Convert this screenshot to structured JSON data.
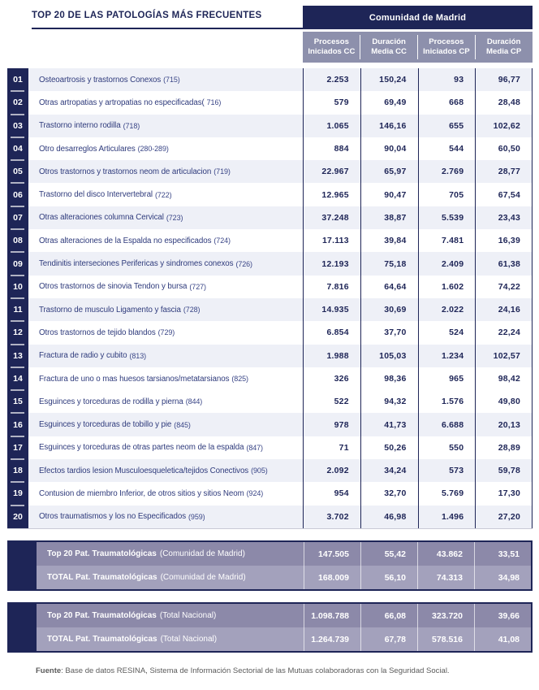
{
  "header": {
    "title": "TOP 20 DE LAS PATOLOGÍAS MÁS FRECUENTES",
    "region_title": "Comunidad de Madrid",
    "columns": [
      {
        "line1": "Procesos",
        "line2": "Iniciados CC"
      },
      {
        "line1": "Duración",
        "line2": "Media CC"
      },
      {
        "line1": "Procesos",
        "line2": "Iniciados CP"
      },
      {
        "line1": "Duración",
        "line2": "Media CP"
      }
    ]
  },
  "table": {
    "rows": [
      {
        "rank": "01",
        "label": "Osteoartrosis y trastornos Conexos",
        "code": "(715)",
        "values": [
          "2.253",
          "150,24",
          "93",
          "96,77"
        ]
      },
      {
        "rank": "02",
        "label": "Otras artropatias y artropatias no especificadas(",
        "code": "716)",
        "values": [
          "579",
          "69,49",
          "668",
          "28,48"
        ]
      },
      {
        "rank": "03",
        "label": "Trastorno interno rodilla",
        "code": "(718)",
        "values": [
          "1.065",
          "146,16",
          "655",
          "102,62"
        ]
      },
      {
        "rank": "04",
        "label": "Otro desarreglos Articulares",
        "code": "(280-289)",
        "values": [
          "884",
          "90,04",
          "544",
          "60,50"
        ]
      },
      {
        "rank": "05",
        "label": "Otros trastornos y trastornos neom de articulacion",
        "code": "(719)",
        "values": [
          "22.967",
          "65,97",
          "2.769",
          "28,77"
        ]
      },
      {
        "rank": "06",
        "label": "Trastorno del disco Intervertebral",
        "code": "(722)",
        "values": [
          "12.965",
          "90,47",
          "705",
          "67,54"
        ]
      },
      {
        "rank": "07",
        "label": "Otras alteraciones columna Cervical",
        "code": "(723)",
        "values": [
          "37.248",
          "38,87",
          "5.539",
          "23,43"
        ]
      },
      {
        "rank": "08",
        "label": "Otras alteraciones de la Espalda no especificados",
        "code": "(724)",
        "values": [
          "17.113",
          "39,84",
          "7.481",
          "16,39"
        ]
      },
      {
        "rank": "09",
        "label": "Tendinitis interseciones Perifericas y sindromes conexos",
        "code": "(726)",
        "values": [
          "12.193",
          "75,18",
          "2.409",
          "61,38"
        ]
      },
      {
        "rank": "10",
        "label": "Otros trastornos de sinovia Tendon y bursa",
        "code": "(727)",
        "values": [
          "7.816",
          "64,64",
          "1.602",
          "74,22"
        ]
      },
      {
        "rank": "11",
        "label": "Trastorno de musculo Ligamento y fascia",
        "code": "(728)",
        "values": [
          "14.935",
          "30,69",
          "2.022",
          "24,16"
        ]
      },
      {
        "rank": "12",
        "label": "Otros trastornos de tejido blandos",
        "code": "(729)",
        "values": [
          "6.854",
          "37,70",
          "524",
          "22,24"
        ]
      },
      {
        "rank": "13",
        "label": "Fractura de radio y cubito",
        "code": "(813)",
        "values": [
          "1.988",
          "105,03",
          "1.234",
          "102,57"
        ]
      },
      {
        "rank": "14",
        "label": "Fractura de uno o mas huesos tarsianos/metatarsianos",
        "code": "(825)",
        "values": [
          "326",
          "98,36",
          "965",
          "98,42"
        ]
      },
      {
        "rank": "15",
        "label": "Esguinces y torceduras de rodilla y pierna",
        "code": "(844)",
        "values": [
          "522",
          "94,32",
          "1.576",
          "49,80"
        ]
      },
      {
        "rank": "16",
        "label": "Esguinces y torceduras de tobillo y pie",
        "code": "(845)",
        "values": [
          "978",
          "41,73",
          "6.688",
          "20,13"
        ]
      },
      {
        "rank": "17",
        "label": "Esguinces y torceduras de otras partes neom de la espalda",
        "code": "(847)",
        "values": [
          "71",
          "50,26",
          "550",
          "28,89"
        ]
      },
      {
        "rank": "18",
        "label": "Efectos tardios lesion Musculoesqueletica/tejidos Conectivos",
        "code": "(905)",
        "values": [
          "2.092",
          "34,24",
          "573",
          "59,78"
        ]
      },
      {
        "rank": "19",
        "label": "Contusion de miembro Inferior, de otros sitios y sitios Neom",
        "code": "(924)",
        "values": [
          "954",
          "32,70",
          "5.769",
          "17,30"
        ]
      },
      {
        "rank": "20",
        "label": "Otros traumatismos y los no Especificados",
        "code": "(959)",
        "values": [
          "3.702",
          "46,98",
          "1.496",
          "27,20"
        ]
      }
    ]
  },
  "summaries": [
    {
      "rows": [
        {
          "label": "Top 20 Pat. Traumatológicas",
          "qualifier": "(Comunidad de Madrid)",
          "values": [
            "147.505",
            "55,42",
            "43.862",
            "33,51"
          ]
        },
        {
          "label": "TOTAL Pat. Traumatológicas",
          "qualifier": "(Comunidad de Madrid)",
          "values": [
            "168.009",
            "56,10",
            "74.313",
            "34,98"
          ]
        }
      ]
    },
    {
      "rows": [
        {
          "label": "Top 20 Pat. Traumatológicas",
          "qualifier": "(Total Nacional)",
          "values": [
            "1.098.788",
            "66,08",
            "323.720",
            "39,66"
          ]
        },
        {
          "label": "TOTAL Pat. Traumatológicas",
          "qualifier": "(Total Nacional)",
          "values": [
            "1.264.739",
            "67,78",
            "578.516",
            "41,08"
          ]
        }
      ]
    }
  ],
  "footer": {
    "bold": "Fuente",
    "text": ": Base de datos RESINA, Sistema de Información Sectorial de las Mutuas colaboradoras con la Seguridad Social."
  },
  "colors": {
    "navy": "#1e2557",
    "subheader_gray": "#8d90ac",
    "summary_row1": "#8c89a9",
    "summary_row2": "#a3a1bc",
    "row_shade": "#eef0f7",
    "label_text": "#2f3b7c",
    "footer_text": "#5b5b5b"
  }
}
